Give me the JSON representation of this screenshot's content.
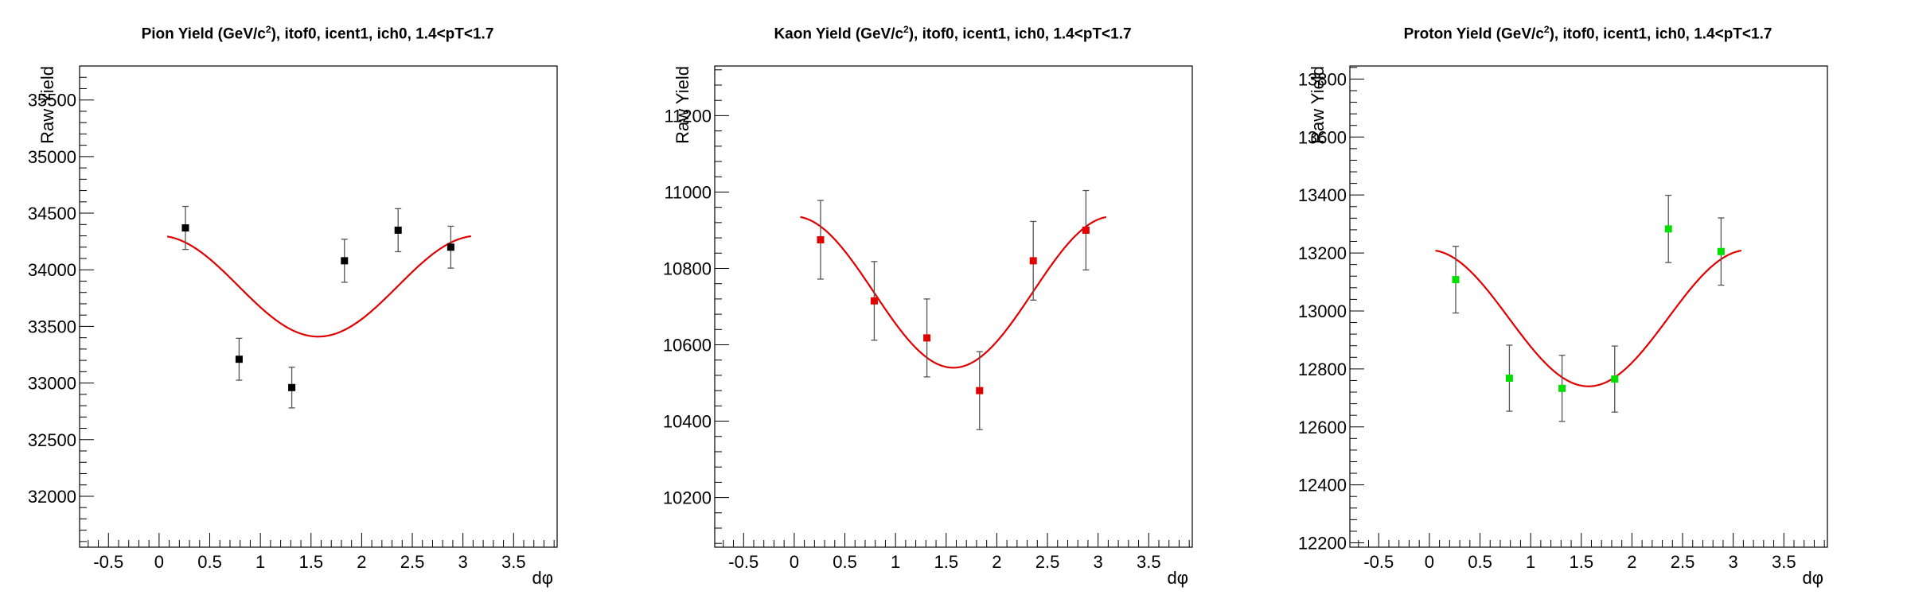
{
  "chart_data": [
    {
      "type": "scatter",
      "title": {
        "pre": "Pion Yield (GeV/c",
        "sup": "2",
        "post": "), itof0, icent1, ich0, 1.4<pT<1.7"
      },
      "xlabel": "dφ",
      "ylabel": "Raw Yield",
      "xlim": [
        -0.785,
        3.93
      ],
      "ylim": [
        31550,
        35800
      ],
      "xticks": [
        -0.5,
        0,
        0.5,
        1,
        1.5,
        2,
        2.5,
        3,
        3.5
      ],
      "xtick_labels": [
        "-0.5",
        "0",
        "0.5",
        "1",
        "1.5",
        "2",
        "2.5",
        "3",
        "3.5"
      ],
      "yticks": [
        32000,
        32500,
        33000,
        33500,
        34000,
        34500,
        35000,
        35500
      ],
      "ytick_labels": [
        "32000",
        "32500",
        "33000",
        "33500",
        "34000",
        "34500",
        "35000",
        "35500"
      ],
      "marker_color": "#000000",
      "points": [
        {
          "x": 0.26,
          "y": 34370,
          "err": 190
        },
        {
          "x": 0.79,
          "y": 33210,
          "err": 185
        },
        {
          "x": 1.31,
          "y": 32960,
          "err": 180
        },
        {
          "x": 1.83,
          "y": 34080,
          "err": 190
        },
        {
          "x": 2.36,
          "y": 34350,
          "err": 190
        },
        {
          "x": 2.88,
          "y": 34200,
          "err": 185
        }
      ],
      "fit": {
        "color": "#e00000",
        "mean": 33855,
        "amplitude": 445,
        "x_range": [
          0.08,
          3.08
        ]
      }
    },
    {
      "type": "scatter",
      "title": {
        "pre": "Kaon Yield (GeV/c",
        "sup": "2",
        "post": "), itof0, icent1, ich0, 1.4<pT<1.7"
      },
      "xlabel": "dφ",
      "ylabel": "Raw Yield",
      "xlim": [
        -0.785,
        3.93
      ],
      "ylim": [
        10070,
        11330
      ],
      "xticks": [
        -0.5,
        0,
        0.5,
        1,
        1.5,
        2,
        2.5,
        3,
        3.5
      ],
      "xtick_labels": [
        "-0.5",
        "0",
        "0.5",
        "1",
        "1.5",
        "2",
        "2.5",
        "3",
        "3.5"
      ],
      "yticks": [
        10200,
        10400,
        10600,
        10800,
        11000,
        11200
      ],
      "ytick_labels": [
        "10200",
        "10400",
        "10600",
        "10800",
        "11000",
        "11200"
      ],
      "marker_color": "#e00000",
      "points": [
        {
          "x": 0.26,
          "y": 10875,
          "err": 103
        },
        {
          "x": 0.79,
          "y": 10715,
          "err": 103
        },
        {
          "x": 1.31,
          "y": 10618,
          "err": 102
        },
        {
          "x": 1.83,
          "y": 10480,
          "err": 102
        },
        {
          "x": 2.36,
          "y": 10820,
          "err": 103
        },
        {
          "x": 2.88,
          "y": 10900,
          "err": 104
        }
      ],
      "fit": {
        "color": "#e00000",
        "mean": 10738,
        "amplitude": 198,
        "x_range": [
          0.06,
          3.08
        ]
      }
    },
    {
      "type": "scatter",
      "title": {
        "pre": "Proton Yield (GeV/c",
        "sup": "2",
        "post": "), itof0, icent1, ich0, 1.4<pT<1.7"
      },
      "xlabel": "dφ",
      "ylabel": "Raw Yield",
      "xlim": [
        -0.785,
        3.93
      ],
      "ylim": [
        12185,
        13845
      ],
      "xticks": [
        -0.5,
        0,
        0.5,
        1,
        1.5,
        2,
        2.5,
        3,
        3.5
      ],
      "xtick_labels": [
        "-0.5",
        "0",
        "0.5",
        "1",
        "1.5",
        "2",
        "2.5",
        "3",
        "3.5"
      ],
      "yticks": [
        12200,
        12400,
        12600,
        12800,
        13000,
        13200,
        13400,
        13600,
        13800
      ],
      "ytick_labels": [
        "12200",
        "12400",
        "12600",
        "12800",
        "13000",
        "13200",
        "13400",
        "13600",
        "13800"
      ],
      "marker_color": "#00e000",
      "points": [
        {
          "x": 0.26,
          "y": 13108,
          "err": 115
        },
        {
          "x": 0.79,
          "y": 12768,
          "err": 114
        },
        {
          "x": 1.31,
          "y": 12733,
          "err": 114
        },
        {
          "x": 1.83,
          "y": 12765,
          "err": 114
        },
        {
          "x": 2.36,
          "y": 13283,
          "err": 116
        },
        {
          "x": 2.88,
          "y": 13205,
          "err": 116
        }
      ],
      "fit": {
        "color": "#e00000",
        "mean": 12975,
        "amplitude": 235,
        "x_range": [
          0.06,
          3.08
        ]
      }
    }
  ]
}
